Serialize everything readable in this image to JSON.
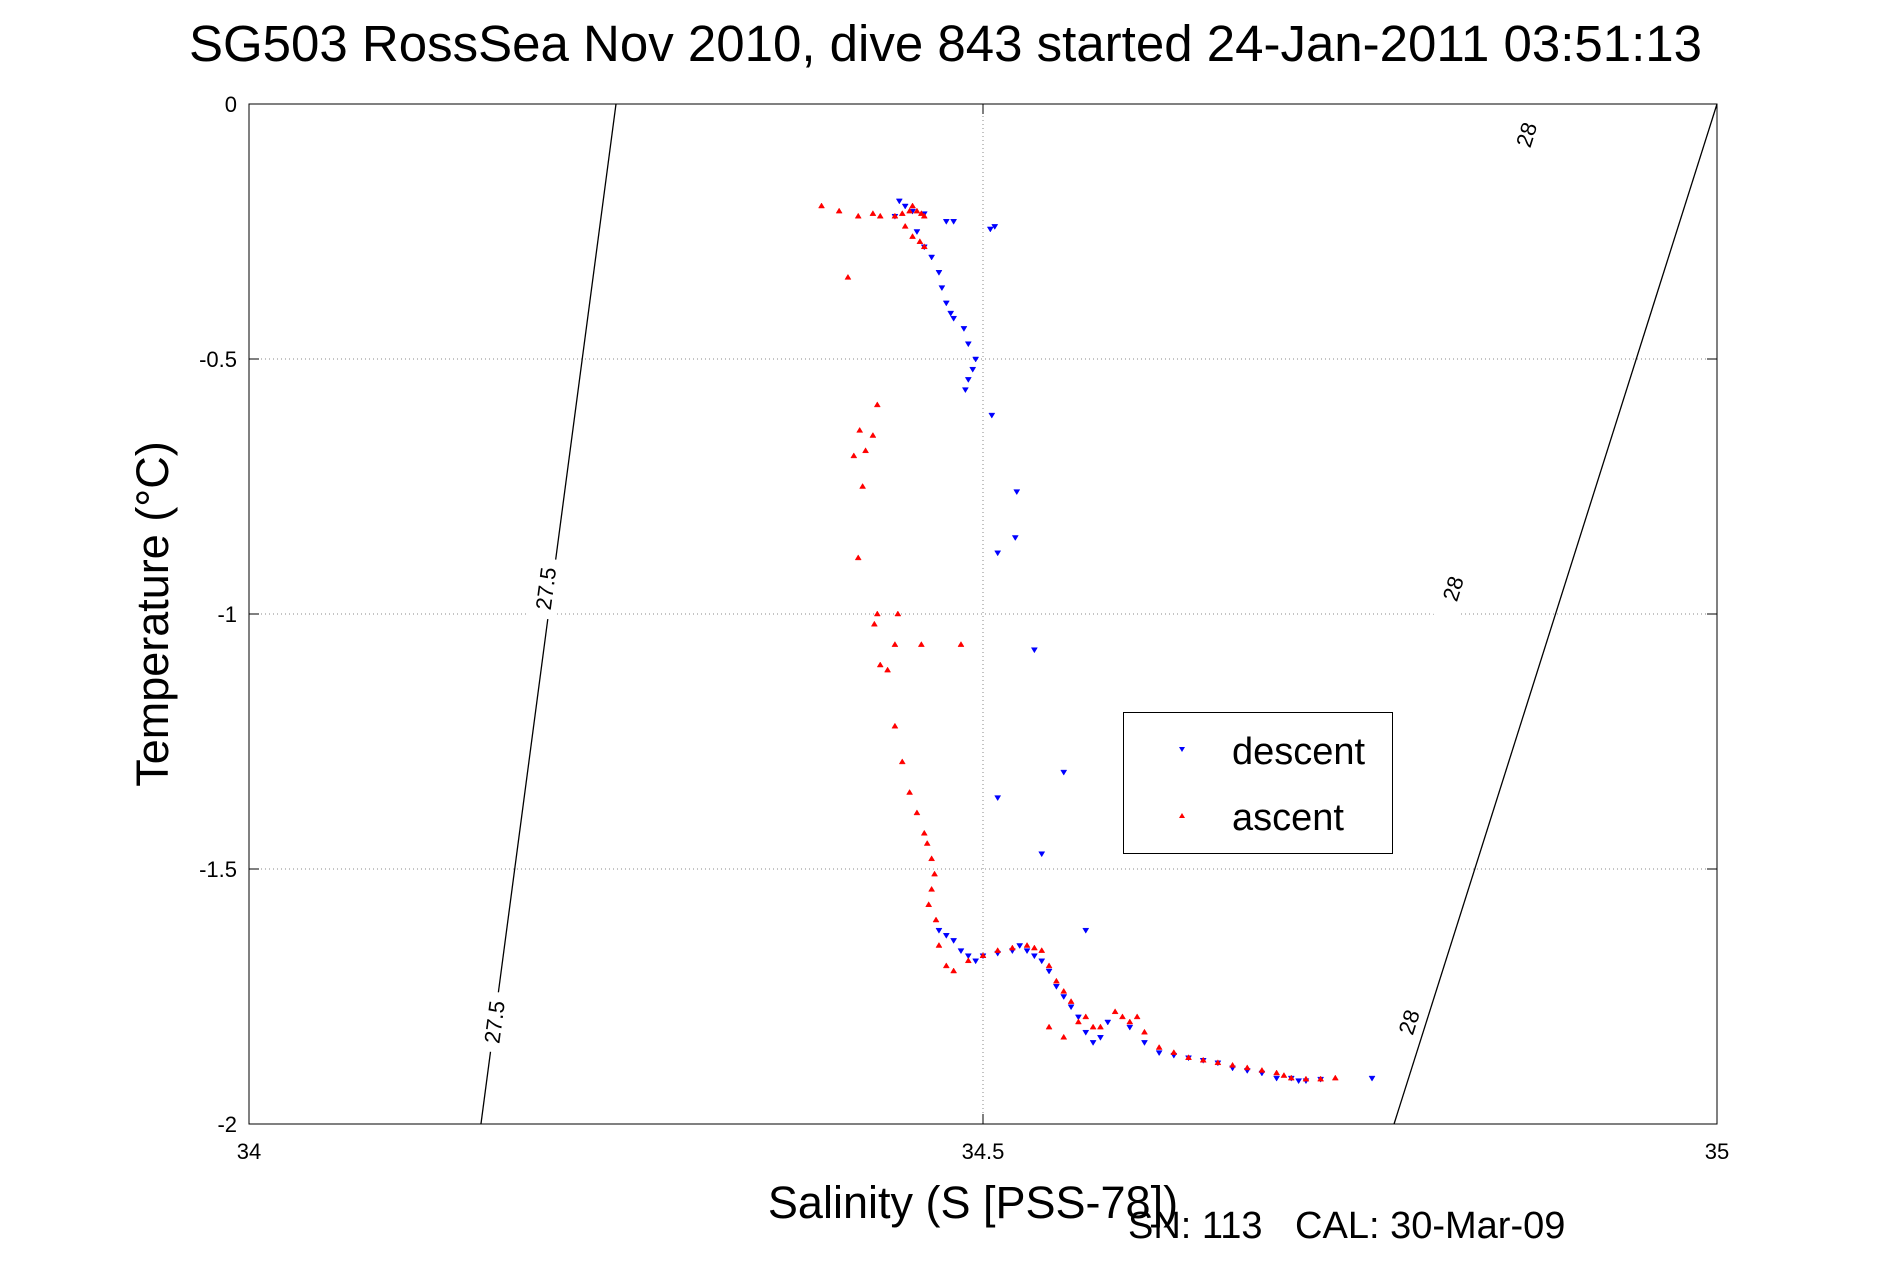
{
  "chart_data": {
    "type": "scatter",
    "title": "SG503 RossSea Nov 2010, dive 843 started 24-Jan-2011 03:51:13",
    "xlabel": "Salinity (S [PSS-78])",
    "ylabel": "Temperature (°C)",
    "xlim": [
      34,
      35
    ],
    "ylim": [
      -2,
      0
    ],
    "x_ticks": [
      "34",
      "34.5",
      "35"
    ],
    "y_ticks": [
      "0",
      "-0.5",
      "-1",
      "-1.5",
      "-2"
    ],
    "grid": true,
    "legend_position": "center-right",
    "density_contours": [
      {
        "label": "27.5",
        "points": [
          [
            34.25,
            0
          ],
          [
            34.158,
            -2
          ]
        ],
        "label_positions": [
          [
            34.202,
            -0.95
          ],
          [
            34.167,
            -1.8
          ]
        ]
      },
      {
        "label": "28",
        "points": [
          [
            35.0,
            0
          ],
          [
            34.78,
            -2
          ]
        ],
        "label_positions": [
          [
            34.87,
            -0.06
          ],
          [
            34.82,
            -0.95
          ],
          [
            34.79,
            -1.8
          ]
        ]
      }
    ],
    "series": [
      {
        "name": "descent",
        "color": "#0000ff",
        "marker": "triangle-down",
        "points": [
          [
            34.443,
            -0.19
          ],
          [
            34.447,
            -0.2
          ],
          [
            34.452,
            -0.21
          ],
          [
            34.46,
            -0.215
          ],
          [
            34.475,
            -0.23
          ],
          [
            34.48,
            -0.23
          ],
          [
            34.505,
            -0.245
          ],
          [
            34.508,
            -0.24
          ],
          [
            34.44,
            -0.22
          ],
          [
            34.455,
            -0.25
          ],
          [
            34.46,
            -0.28
          ],
          [
            34.465,
            -0.3
          ],
          [
            34.47,
            -0.33
          ],
          [
            34.472,
            -0.36
          ],
          [
            34.475,
            -0.39
          ],
          [
            34.478,
            -0.41
          ],
          [
            34.48,
            -0.42
          ],
          [
            34.487,
            -0.44
          ],
          [
            34.49,
            -0.47
          ],
          [
            34.495,
            -0.5
          ],
          [
            34.493,
            -0.52
          ],
          [
            34.49,
            -0.54
          ],
          [
            34.488,
            -0.56
          ],
          [
            34.506,
            -0.61
          ],
          [
            34.523,
            -0.76
          ],
          [
            34.51,
            -0.88
          ],
          [
            34.522,
            -0.85
          ],
          [
            34.535,
            -1.07
          ],
          [
            34.555,
            -1.31
          ],
          [
            34.51,
            -1.36
          ],
          [
            34.54,
            -1.47
          ],
          [
            34.57,
            -1.62
          ],
          [
            34.47,
            -1.62
          ],
          [
            34.475,
            -1.63
          ],
          [
            34.48,
            -1.64
          ],
          [
            34.485,
            -1.66
          ],
          [
            34.49,
            -1.67
          ],
          [
            34.495,
            -1.68
          ],
          [
            34.5,
            -1.67
          ],
          [
            34.51,
            -1.665
          ],
          [
            34.52,
            -1.66
          ],
          [
            34.525,
            -1.65
          ],
          [
            34.53,
            -1.66
          ],
          [
            34.535,
            -1.67
          ],
          [
            34.54,
            -1.68
          ],
          [
            34.545,
            -1.7
          ],
          [
            34.55,
            -1.73
          ],
          [
            34.555,
            -1.75
          ],
          [
            34.56,
            -1.77
          ],
          [
            34.565,
            -1.79
          ],
          [
            34.57,
            -1.82
          ],
          [
            34.575,
            -1.84
          ],
          [
            34.58,
            -1.83
          ],
          [
            34.585,
            -1.8
          ],
          [
            34.6,
            -1.81
          ],
          [
            34.61,
            -1.84
          ],
          [
            34.62,
            -1.86
          ],
          [
            34.63,
            -1.865
          ],
          [
            34.64,
            -1.87
          ],
          [
            34.65,
            -1.875
          ],
          [
            34.66,
            -1.88
          ],
          [
            34.67,
            -1.89
          ],
          [
            34.68,
            -1.895
          ],
          [
            34.69,
            -1.9
          ],
          [
            34.7,
            -1.91
          ],
          [
            34.71,
            -1.91
          ],
          [
            34.715,
            -1.915
          ],
          [
            34.72,
            -1.915
          ],
          [
            34.73,
            -1.912
          ],
          [
            34.765,
            -1.91
          ]
        ]
      },
      {
        "name": "ascent",
        "color": "#ff0000",
        "marker": "triangle-up",
        "points": [
          [
            34.39,
            -0.2
          ],
          [
            34.402,
            -0.21
          ],
          [
            34.415,
            -0.22
          ],
          [
            34.425,
            -0.215
          ],
          [
            34.43,
            -0.22
          ],
          [
            34.44,
            -0.22
          ],
          [
            34.445,
            -0.215
          ],
          [
            34.45,
            -0.21
          ],
          [
            34.452,
            -0.2
          ],
          [
            34.455,
            -0.21
          ],
          [
            34.458,
            -0.215
          ],
          [
            34.46,
            -0.22
          ],
          [
            34.447,
            -0.24
          ],
          [
            34.452,
            -0.26
          ],
          [
            34.457,
            -0.27
          ],
          [
            34.46,
            -0.28
          ],
          [
            34.408,
            -0.34
          ],
          [
            34.428,
            -0.59
          ],
          [
            34.416,
            -0.64
          ],
          [
            34.425,
            -0.65
          ],
          [
            34.42,
            -0.68
          ],
          [
            34.412,
            -0.69
          ],
          [
            34.418,
            -0.75
          ],
          [
            34.415,
            -0.89
          ],
          [
            34.428,
            -1.0
          ],
          [
            34.442,
            -1.0
          ],
          [
            34.426,
            -1.02
          ],
          [
            34.44,
            -1.06
          ],
          [
            34.458,
            -1.06
          ],
          [
            34.485,
            -1.06
          ],
          [
            34.43,
            -1.1
          ],
          [
            34.435,
            -1.11
          ],
          [
            34.44,
            -1.22
          ],
          [
            34.445,
            -1.29
          ],
          [
            34.45,
            -1.35
          ],
          [
            34.455,
            -1.39
          ],
          [
            34.46,
            -1.43
          ],
          [
            34.462,
            -1.45
          ],
          [
            34.465,
            -1.48
          ],
          [
            34.467,
            -1.51
          ],
          [
            34.465,
            -1.54
          ],
          [
            34.463,
            -1.57
          ],
          [
            34.468,
            -1.6
          ],
          [
            34.47,
            -1.65
          ],
          [
            34.475,
            -1.69
          ],
          [
            34.48,
            -1.7
          ],
          [
            34.49,
            -1.68
          ],
          [
            34.5,
            -1.67
          ],
          [
            34.51,
            -1.66
          ],
          [
            34.52,
            -1.655
          ],
          [
            34.53,
            -1.65
          ],
          [
            34.535,
            -1.655
          ],
          [
            34.54,
            -1.66
          ],
          [
            34.545,
            -1.69
          ],
          [
            34.55,
            -1.72
          ],
          [
            34.555,
            -1.74
          ],
          [
            34.56,
            -1.76
          ],
          [
            34.565,
            -1.8
          ],
          [
            34.57,
            -1.79
          ],
          [
            34.575,
            -1.81
          ],
          [
            34.58,
            -1.81
          ],
          [
            34.59,
            -1.78
          ],
          [
            34.595,
            -1.79
          ],
          [
            34.6,
            -1.8
          ],
          [
            34.605,
            -1.79
          ],
          [
            34.61,
            -1.82
          ],
          [
            34.62,
            -1.85
          ],
          [
            34.63,
            -1.86
          ],
          [
            34.64,
            -1.87
          ],
          [
            34.65,
            -1.875
          ],
          [
            34.66,
            -1.88
          ],
          [
            34.67,
            -1.885
          ],
          [
            34.68,
            -1.89
          ],
          [
            34.69,
            -1.895
          ],
          [
            34.7,
            -1.9
          ],
          [
            34.705,
            -1.905
          ],
          [
            34.71,
            -1.91
          ],
          [
            34.72,
            -1.912
          ],
          [
            34.73,
            -1.912
          ],
          [
            34.74,
            -1.91
          ],
          [
            34.545,
            -1.81
          ],
          [
            34.555,
            -1.83
          ]
        ]
      }
    ]
  },
  "footer": {
    "serial": "SN: 113",
    "calibration": "CAL: 30-Mar-09"
  }
}
